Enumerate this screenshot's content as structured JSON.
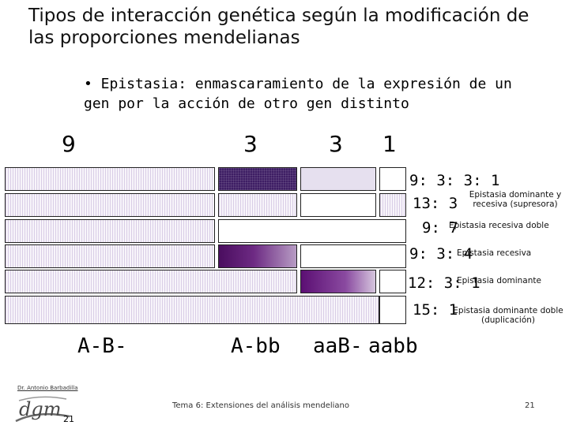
{
  "title": "Tipos de interacción genética según la modificación de las proporciones mendelianas",
  "bullet": "• Epistasia: enmascaramiento de la expresión de un gen por la acción de otro gen distinto",
  "top_ratios": [
    "9",
    "3",
    "3",
    "1"
  ],
  "rows": [
    {
      "ratio": "9: 3: 3: 1",
      "description": ""
    },
    {
      "ratio": "13: 3",
      "description": "Epistasia dominante y recesiva (supresora)"
    },
    {
      "ratio": "9: 7",
      "description": "Epistasia recesiva doble"
    },
    {
      "ratio": "9: 3: 4",
      "description": "Epistasia  recesiva"
    },
    {
      "ratio": "12: 3: 1",
      "description": "Epistasia  dominante"
    },
    {
      "ratio": "15: 1",
      "description": "Epistasia dominante doble (duplicación)"
    }
  ],
  "genotypes": [
    "A-B-",
    "A-bb",
    "aaB-",
    "aabb"
  ],
  "author": "Dr. Antonio Barbadilla",
  "logo_text": "dgm",
  "page_number_left": "21",
  "footer": "Tema 6: Extensiones del análisis mendeliano",
  "page_number_right": "21",
  "colors": {
    "purple_dark": "#3e1e64",
    "purple_grad": "#6d2a83",
    "lavender": "#e6e0ef",
    "striped": "#d9cde6"
  }
}
